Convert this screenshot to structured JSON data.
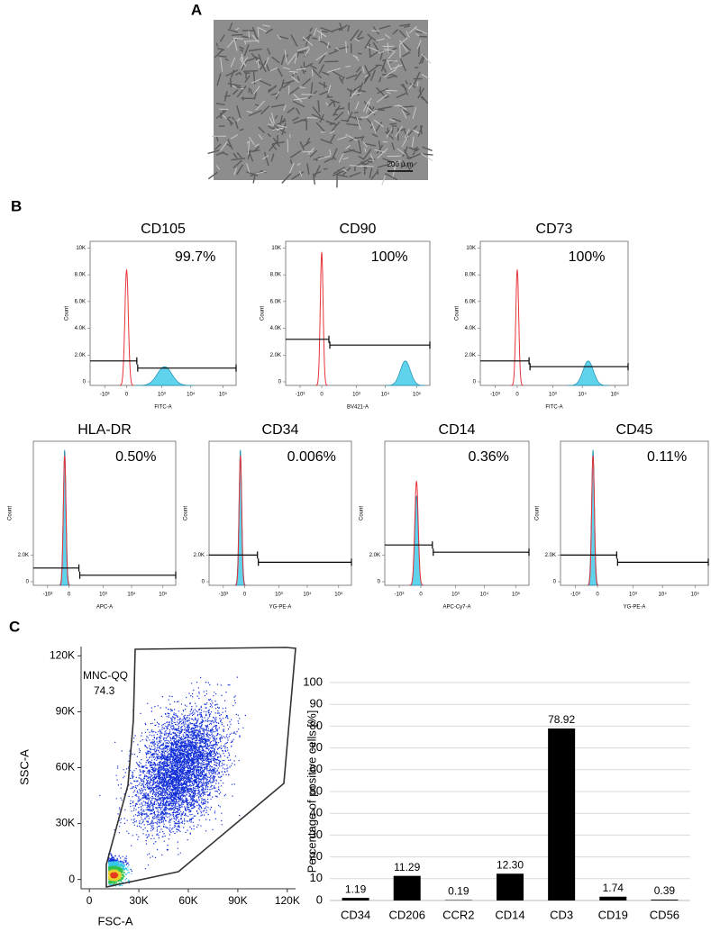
{
  "panel_labels": {
    "a": "A",
    "b": "B",
    "c": "C"
  },
  "panel_a": {
    "scale_bar": "200 μ m"
  },
  "histograms": [
    {
      "title": "CD105",
      "percent": "99.7%",
      "x_label": "FITC-A",
      "y_label": "Count",
      "ylim": [
        0,
        10500
      ],
      "yticks": [
        0,
        {
          "value": 2000,
          "label": "2.0K"
        },
        {
          "value": 4000,
          "label": "4.0K"
        },
        {
          "value": 6000,
          "label": "6.0K"
        },
        {
          "value": 8000,
          "label": "8.0K"
        },
        {
          "value": 10000,
          "label": "10K"
        }
      ],
      "xticks": [
        "-10³",
        "0",
        "10³",
        "10⁴",
        "10⁵"
      ]
    },
    {
      "title": "CD90",
      "percent": "100%",
      "x_label": "BV421-A",
      "y_label": "Count",
      "ylim": [
        0,
        10500
      ],
      "yticks": [
        0,
        {
          "value": 2000,
          "label": "2.0K"
        },
        {
          "value": 4000,
          "label": "4.0K"
        },
        {
          "value": 6000,
          "label": "6.0K"
        },
        {
          "value": 8000,
          "label": "8.0K"
        },
        {
          "value": 10000,
          "label": "10K"
        }
      ],
      "xticks": [
        "-10³",
        "0",
        "10³",
        "10⁴",
        "10⁵"
      ]
    },
    {
      "title": "CD73",
      "percent": "100%",
      "x_label": "FITC-A",
      "y_label": "Count",
      "ylim": [
        0,
        10500
      ],
      "yticks": [
        0,
        {
          "value": 2000,
          "label": "2.0K"
        },
        {
          "value": 4000,
          "label": "4.0K"
        },
        {
          "value": 6000,
          "label": "6.0K"
        },
        {
          "value": 8000,
          "label": "8.0K"
        },
        {
          "value": 10000,
          "label": "10K"
        }
      ],
      "xticks": [
        "-10³",
        "0",
        "10³",
        "10⁴",
        "10⁵"
      ]
    },
    {
      "title": "HLA-DR",
      "percent": "0.50%",
      "x_label": "APC-A",
      "y_label": "Count",
      "ylim": [
        0,
        10500
      ],
      "yticks": [
        0,
        {
          "value": 2000,
          "label": "2.0K"
        }
      ],
      "xticks": [
        "-10³",
        "0",
        "10³",
        "10⁴",
        "10⁵"
      ]
    },
    {
      "title": "CD34",
      "percent": "0.006%",
      "x_label": "YG-PE-A",
      "y_label": "Count",
      "ylim": [
        0,
        10500
      ],
      "yticks": [
        0,
        {
          "value": 2000,
          "label": "2.0K"
        }
      ],
      "xticks": [
        "-10³",
        "0",
        "10³",
        "10⁴",
        "10⁵"
      ]
    },
    {
      "title": "CD14",
      "percent": "0.36%",
      "x_label": "APC-Cy7-A",
      "y_label": "Count",
      "ylim": [
        0,
        10500
      ],
      "yticks": [
        0,
        {
          "value": 2000,
          "label": "2.0K"
        }
      ],
      "xticks": [
        "-10³",
        "0",
        "10³",
        "10⁴",
        "10⁵"
      ]
    },
    {
      "title": "CD45",
      "percent": "0.11%",
      "x_label": "YG-PE-A",
      "y_label": "Count",
      "ylim": [
        0,
        10500
      ],
      "yticks": [
        0,
        {
          "value": 2000,
          "label": "2.0K"
        }
      ],
      "xticks": [
        "-10³",
        "0",
        "10³",
        "10⁴",
        "10⁵"
      ]
    }
  ],
  "chart_data": [
    {
      "type": "scatter",
      "x_label": "FSC-A",
      "y_label": "SSC-A",
      "gate_name": "MNC-QQ",
      "gate_percent": 74.3,
      "xlim": [
        -5000,
        125000
      ],
      "ylim": [
        -5000,
        125000
      ],
      "xticks": [
        0,
        {
          "value": 30000,
          "label": "30K"
        },
        {
          "value": 60000,
          "label": "60K"
        },
        {
          "value": 90000,
          "label": "90K"
        },
        {
          "value": 120000,
          "label": "120K"
        }
      ],
      "yticks": [
        0,
        {
          "value": 30000,
          "label": "30K"
        },
        {
          "value": 60000,
          "label": "60K"
        },
        {
          "value": 90000,
          "label": "90K"
        },
        {
          "value": 120000,
          "label": "120K"
        }
      ]
    },
    {
      "type": "bar",
      "y_label": "Percentage of positive cells [%]",
      "categories": [
        "CD34",
        "CD206",
        "CCR2",
        "CD14",
        "CD3",
        "CD19",
        "CD56"
      ],
      "values": [
        1.19,
        11.29,
        0.19,
        12.3,
        78.92,
        1.74,
        0.39
      ],
      "value_labels": [
        "1.19",
        "11.29",
        "0.19",
        "12.30",
        "78.92",
        "1.74",
        "0.39"
      ],
      "color": "#000000",
      "ylim": [
        0,
        100
      ],
      "yticks": [
        0,
        10,
        20,
        30,
        40,
        50,
        60,
        70,
        80,
        90,
        100
      ],
      "grid": true
    }
  ]
}
